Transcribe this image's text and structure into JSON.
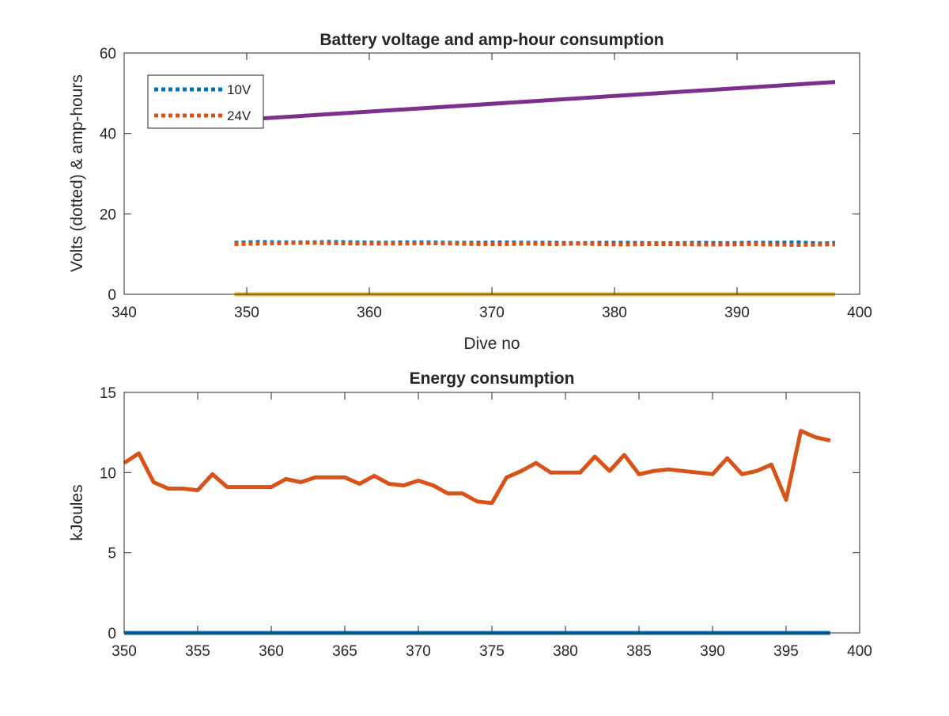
{
  "chart_data": [
    {
      "type": "line",
      "title": "Battery voltage and amp-hour consumption",
      "xlabel": "Dive no",
      "ylabel": "Volts (dotted) & amp-hours",
      "xlim": [
        340,
        400
      ],
      "ylim": [
        0,
        60
      ],
      "xticks": [
        "340",
        "350",
        "360",
        "370",
        "380",
        "390",
        "400"
      ],
      "yticks": [
        "0",
        "20",
        "40",
        "60"
      ],
      "grid": false,
      "legend_position": "top-left",
      "series": [
        {
          "name": "10V",
          "style": "dotted",
          "color": "#0072BD",
          "x": [
            349,
            351,
            353,
            355,
            357,
            359,
            361,
            363,
            365,
            367,
            369,
            371,
            373,
            375,
            377,
            379,
            381,
            383,
            385,
            387,
            389,
            391,
            393,
            395,
            397,
            398
          ],
          "y": [
            12.8,
            13.0,
            12.9,
            12.9,
            13.0,
            12.9,
            12.8,
            12.9,
            12.9,
            12.8,
            12.8,
            12.9,
            12.8,
            12.8,
            12.7,
            12.8,
            12.8,
            12.7,
            12.7,
            12.8,
            12.7,
            12.8,
            12.8,
            12.9,
            12.6,
            12.8
          ]
        },
        {
          "name": "24V",
          "style": "dotted",
          "color": "#D95319",
          "x": [
            349,
            351,
            353,
            355,
            357,
            359,
            361,
            363,
            365,
            367,
            369,
            371,
            373,
            375,
            377,
            379,
            381,
            383,
            385,
            387,
            389,
            391,
            393,
            395,
            397,
            398
          ],
          "y": [
            12.5,
            12.6,
            12.7,
            12.8,
            12.7,
            12.6,
            12.6,
            12.6,
            12.7,
            12.6,
            12.5,
            12.5,
            12.6,
            12.5,
            12.6,
            12.5,
            12.4,
            12.5,
            12.5,
            12.4,
            12.4,
            12.5,
            12.4,
            12.3,
            12.4,
            12.4
          ]
        },
        {
          "name": "",
          "style": "solid",
          "color": "#EDB120",
          "x": [
            349,
            398
          ],
          "y": [
            0,
            0
          ]
        },
        {
          "name": "",
          "style": "solid",
          "color": "#7E2F8E",
          "x": [
            349,
            398
          ],
          "y": [
            43.3,
            52.8
          ]
        }
      ]
    },
    {
      "type": "line",
      "title": "Energy consumption",
      "xlabel": "",
      "ylabel": "kJoules",
      "xlim": [
        350,
        400
      ],
      "ylim": [
        0,
        15
      ],
      "xticks": [
        "350",
        "355",
        "360",
        "365",
        "370",
        "375",
        "380",
        "385",
        "390",
        "395",
        "400"
      ],
      "yticks": [
        "0",
        "5",
        "10",
        "15"
      ],
      "grid": false,
      "series": [
        {
          "name": "",
          "style": "solid",
          "color": "#0072BD",
          "x": [
            350,
            398
          ],
          "y": [
            0,
            0
          ]
        },
        {
          "name": "",
          "style": "solid",
          "color": "#D95319",
          "x": [
            350,
            351,
            352,
            353,
            354,
            355,
            356,
            357,
            358,
            359,
            360,
            361,
            362,
            363,
            364,
            365,
            366,
            367,
            368,
            369,
            370,
            371,
            372,
            373,
            374,
            375,
            376,
            377,
            378,
            379,
            380,
            381,
            382,
            383,
            384,
            385,
            386,
            387,
            388,
            389,
            390,
            391,
            392,
            393,
            394,
            395,
            396,
            397,
            398
          ],
          "y": [
            10.6,
            11.2,
            9.4,
            9.0,
            9.0,
            8.9,
            9.9,
            9.1,
            9.1,
            9.1,
            9.1,
            9.6,
            9.4,
            9.7,
            9.7,
            9.7,
            9.3,
            9.8,
            9.3,
            9.2,
            9.5,
            9.2,
            8.7,
            8.7,
            8.2,
            8.1,
            9.7,
            10.1,
            10.6,
            10.0,
            10.0,
            10.0,
            11.0,
            10.1,
            11.1,
            9.9,
            10.1,
            10.2,
            10.1,
            10.0,
            9.9,
            10.9,
            9.9,
            10.1,
            10.5,
            8.3,
            12.6,
            12.2,
            12.0
          ]
        }
      ]
    }
  ]
}
